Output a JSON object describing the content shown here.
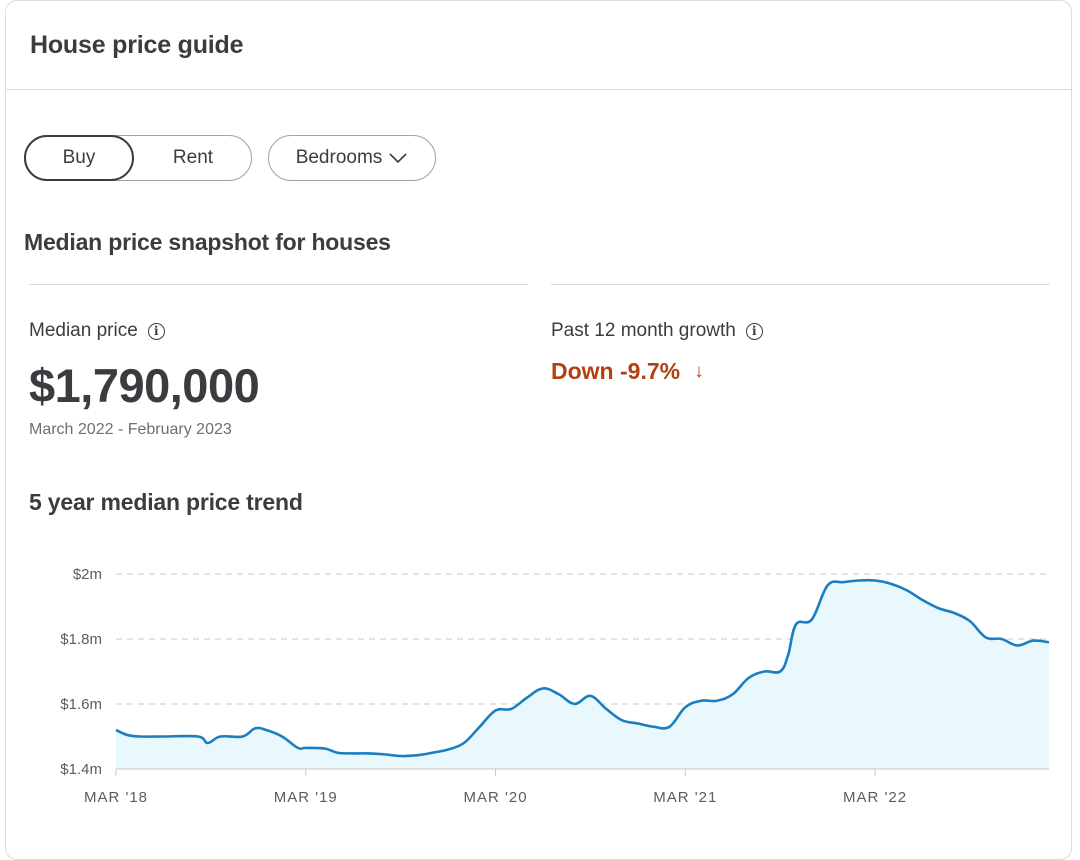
{
  "card": {
    "title": "House price guide"
  },
  "filters": {
    "buy_label": "Buy",
    "rent_label": "Rent",
    "bedrooms_label": "Bedrooms",
    "selected": "Buy"
  },
  "snapshot": {
    "title": "Median price snapshot for houses",
    "median_label": "Median price",
    "median_value": "$1,790,000",
    "date_range": "March 2022 - February 2023",
    "growth_label": "Past 12 month growth",
    "growth_value": "Down -9.7%"
  },
  "colors": {
    "line": "#1a7fc1",
    "area": "#e9f8fd",
    "negative": "#b4400f"
  },
  "chart_data": {
    "type": "area",
    "title": "5 year median price trend",
    "y_ticks": [
      {
        "value": 1.4,
        "label": "$1.4m"
      },
      {
        "value": 1.6,
        "label": "$1.6m"
      },
      {
        "value": 1.8,
        "label": "$1.8m"
      },
      {
        "value": 2.0,
        "label": "$2m"
      }
    ],
    "x_ticks": [
      {
        "value": 0,
        "label": "MAR '18"
      },
      {
        "value": 12,
        "label": "MAR '19"
      },
      {
        "value": 24,
        "label": "MAR '20"
      },
      {
        "value": 36,
        "label": "MAR '21"
      },
      {
        "value": 48,
        "label": "MAR '22"
      }
    ],
    "ylim": [
      1.4,
      2.0
    ],
    "xlim": [
      0,
      59
    ],
    "grid": true,
    "series": [
      {
        "x": [
          0,
          0.7,
          1.5,
          3,
          5.2,
          5.8,
          6.6,
          8,
          8.8,
          9.5,
          10.5,
          11.5,
          12,
          13.2,
          14,
          15,
          16,
          17,
          18,
          19,
          20,
          21,
          22,
          23,
          24,
          25,
          26,
          27,
          28,
          29,
          30,
          31,
          32,
          33,
          34,
          35,
          36,
          37,
          38,
          39,
          40,
          41,
          42,
          42.5,
          43,
          44,
          45,
          46,
          47,
          48,
          49,
          50,
          51,
          52,
          53,
          54,
          55,
          56,
          57,
          58,
          59
        ],
        "y": [
          1.52,
          1.505,
          1.5,
          1.5,
          1.5,
          1.48,
          1.5,
          1.5,
          1.525,
          1.52,
          1.5,
          1.465,
          1.465,
          1.463,
          1.45,
          1.448,
          1.448,
          1.445,
          1.44,
          1.442,
          1.45,
          1.46,
          1.48,
          1.53,
          1.58,
          1.585,
          1.62,
          1.648,
          1.63,
          1.6,
          1.625,
          1.585,
          1.55,
          1.54,
          1.53,
          1.53,
          1.59,
          1.61,
          1.61,
          1.63,
          1.68,
          1.7,
          1.7,
          1.75,
          1.845,
          1.86,
          1.965,
          1.975,
          1.98,
          1.98,
          1.97,
          1.95,
          1.92,
          1.895,
          1.88,
          1.855,
          1.805,
          1.8,
          1.78,
          1.795,
          1.79
        ]
      }
    ]
  }
}
